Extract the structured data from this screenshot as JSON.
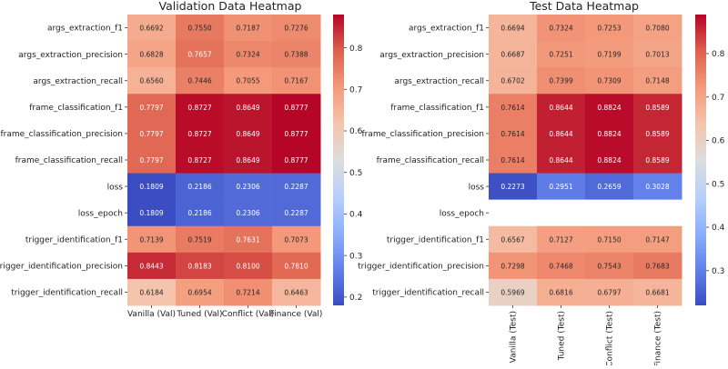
{
  "chart_data": [
    {
      "type": "heatmap",
      "title": "Validation Data Heatmap",
      "rows": [
        "args_extraction_f1",
        "args_extraction_precision",
        "args_extraction_recall",
        "frame_classification_f1",
        "frame_classification_precision",
        "frame_classification_recall",
        "loss",
        "loss_epoch",
        "trigger_identification_f1",
        "trigger_identification_precision",
        "trigger_identification_recall"
      ],
      "columns": [
        "Vanilla (Val)",
        "Tuned (Val)",
        "Conflict (Val)",
        "Finance (Val)"
      ],
      "values": [
        [
          0.6692,
          0.755,
          0.7187,
          0.7276
        ],
        [
          0.6828,
          0.7657,
          0.7324,
          0.7388
        ],
        [
          0.656,
          0.7446,
          0.7055,
          0.7167
        ],
        [
          0.7797,
          0.8727,
          0.8649,
          0.8777
        ],
        [
          0.7797,
          0.8727,
          0.8649,
          0.8777
        ],
        [
          0.7797,
          0.8727,
          0.8649,
          0.8777
        ],
        [
          0.1809,
          0.2186,
          0.2306,
          0.2287
        ],
        [
          0.1809,
          0.2186,
          0.2306,
          0.2287
        ],
        [
          0.7139,
          0.7519,
          0.7631,
          0.7073
        ],
        [
          0.8443,
          0.8183,
          0.81,
          0.781
        ],
        [
          0.6184,
          0.6954,
          0.7214,
          0.6463
        ]
      ],
      "value_labels": [
        [
          "0.6692",
          "0.7550",
          "0.7187",
          "0.7276"
        ],
        [
          "0.6828",
          "0.7657",
          "0.7324",
          "0.7388"
        ],
        [
          "0.6560",
          "0.7446",
          "0.7055",
          "0.7167"
        ],
        [
          "0.7797",
          "0.8727",
          "0.8649",
          "0.8777"
        ],
        [
          "0.7797",
          "0.8727",
          "0.8649",
          "0.8777"
        ],
        [
          "0.7797",
          "0.8727",
          "0.8649",
          "0.8777"
        ],
        [
          "0.1809",
          "0.2186",
          "0.2306",
          "0.2287"
        ],
        [
          "0.1809",
          "0.2186",
          "0.2306",
          "0.2287"
        ],
        [
          "0.7139",
          "0.7519",
          "0.7631",
          "0.7073"
        ],
        [
          "0.8443",
          "0.8183",
          "0.8100",
          "0.7810"
        ],
        [
          "0.6184",
          "0.6954",
          "0.7214",
          "0.6463"
        ]
      ],
      "colormap": "coolwarm",
      "vmin": 0.18,
      "vmax": 0.88,
      "colorbar_ticks": [
        0.2,
        0.3,
        0.4,
        0.5,
        0.6,
        0.7,
        0.8
      ],
      "colorbar_tick_labels": [
        "0.2",
        "0.3",
        "0.4",
        "0.5",
        "0.6",
        "0.7",
        "0.8"
      ],
      "column_label_rotation": "horizontal"
    },
    {
      "type": "heatmap",
      "title": "Test Data Heatmap",
      "rows": [
        "args_extraction_f1",
        "args_extraction_precision",
        "args_extraction_recall",
        "frame_classification_f1",
        "frame_classification_precision",
        "frame_classification_recall",
        "loss",
        "loss_epoch",
        "trigger_identification_f1",
        "trigger_identification_precision",
        "trigger_identification_recall"
      ],
      "columns": [
        "Vanilla (Test)",
        "Tuned (Test)",
        "Conflict (Test)",
        "Finance (Test)"
      ],
      "values": [
        [
          0.6694,
          0.7324,
          0.7253,
          0.708
        ],
        [
          0.6687,
          0.7251,
          0.7199,
          0.7013
        ],
        [
          0.6702,
          0.7399,
          0.7309,
          0.7148
        ],
        [
          0.7614,
          0.8644,
          0.8824,
          0.8589
        ],
        [
          0.7614,
          0.8644,
          0.8824,
          0.8589
        ],
        [
          0.7614,
          0.8644,
          0.8824,
          0.8589
        ],
        [
          0.2273,
          0.2951,
          0.2659,
          0.3028
        ],
        [
          null,
          null,
          null,
          null
        ],
        [
          0.6567,
          0.7127,
          0.715,
          0.7147
        ],
        [
          0.7298,
          0.7468,
          0.7543,
          0.7683
        ],
        [
          0.5969,
          0.6816,
          0.6797,
          0.6681
        ]
      ],
      "value_labels": [
        [
          "0.6694",
          "0.7324",
          "0.7253",
          "0.7080"
        ],
        [
          "0.6687",
          "0.7251",
          "0.7199",
          "0.7013"
        ],
        [
          "0.6702",
          "0.7399",
          "0.7309",
          "0.7148"
        ],
        [
          "0.7614",
          "0.8644",
          "0.8824",
          "0.8589"
        ],
        [
          "0.7614",
          "0.8644",
          "0.8824",
          "0.8589"
        ],
        [
          "0.7614",
          "0.8644",
          "0.8824",
          "0.8589"
        ],
        [
          "0.2273",
          "0.2951",
          "0.2659",
          "0.3028"
        ],
        [
          "",
          "",
          "",
          ""
        ],
        [
          "0.6567",
          "0.7127",
          "0.7150",
          "0.7147"
        ],
        [
          "0.7298",
          "0.7468",
          "0.7543",
          "0.7683"
        ],
        [
          "0.5969",
          "0.6816",
          "0.6797",
          "0.6681"
        ]
      ],
      "colormap": "coolwarm",
      "vmin": 0.22,
      "vmax": 0.89,
      "colorbar_ticks": [
        0.3,
        0.4,
        0.5,
        0.6,
        0.7,
        0.8
      ],
      "colorbar_tick_labels": [
        "0.3",
        "0.4",
        "0.5",
        "0.6",
        "0.7",
        "0.8"
      ],
      "column_label_rotation": "vertical"
    }
  ]
}
